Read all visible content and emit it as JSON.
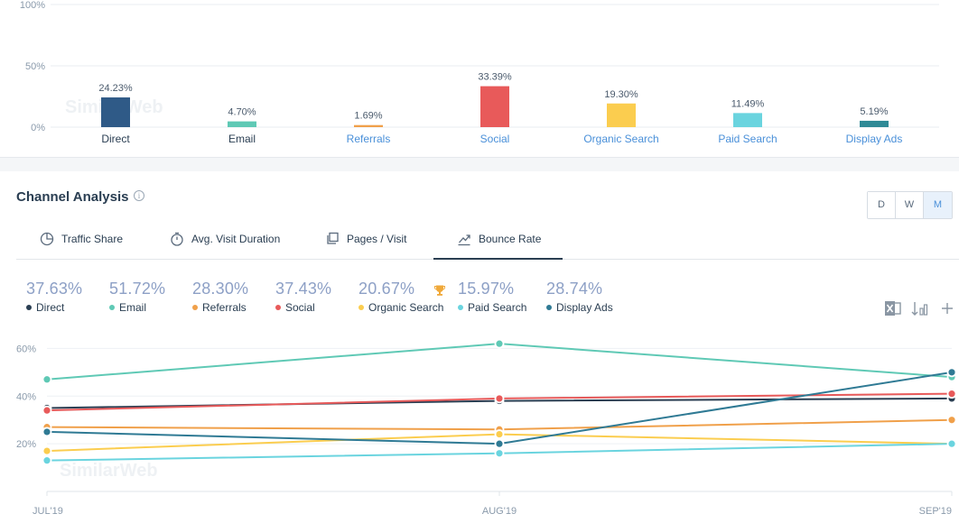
{
  "bar_chart": {
    "chart_data": {
      "type": "bar",
      "categories": [
        "Direct",
        "Email",
        "Referrals",
        "Social",
        "Organic Search",
        "Paid Search",
        "Display Ads"
      ],
      "values": [
        24.23,
        4.7,
        1.69,
        33.39,
        19.3,
        11.49,
        5.19
      ],
      "value_labels": [
        "24.23%",
        "4.70%",
        "1.69%",
        "33.39%",
        "19.30%",
        "11.49%",
        "5.19%"
      ],
      "colors": [
        "#2f5a87",
        "#5fc9b5",
        "#f0a04a",
        "#e85a5a",
        "#fbcd4f",
        "#6ad4df",
        "#2f8a96"
      ],
      "category_colors": [
        "#2a3e52",
        "#2a3e52",
        "#4a90d9",
        "#4a90d9",
        "#4a90d9",
        "#4a90d9",
        "#4a90d9"
      ],
      "yticks": [
        "100%",
        "50%",
        "0%"
      ],
      "ylim": [
        0,
        100
      ],
      "watermark": "SimilarWeb"
    }
  },
  "channel_analysis": {
    "title": "Channel Analysis",
    "info_icon": "info-icon",
    "granularity": [
      "D",
      "W",
      "M"
    ],
    "granularity_active": "M",
    "tabs": [
      {
        "label": "Traffic Share",
        "icon": "pie-chart-icon"
      },
      {
        "label": "Avg. Visit Duration",
        "icon": "stopwatch-icon"
      },
      {
        "label": "Pages / Visit",
        "icon": "pages-icon"
      },
      {
        "label": "Bounce Rate",
        "icon": "bounce-icon",
        "active": true
      }
    ],
    "legend": [
      {
        "value": "37.63%",
        "name": "Direct",
        "color": "#2a3e52"
      },
      {
        "value": "51.72%",
        "name": "Email",
        "color": "#5fc9b5"
      },
      {
        "value": "28.30%",
        "name": "Referrals",
        "color": "#f0a04a"
      },
      {
        "value": "37.43%",
        "name": "Social",
        "color": "#e85a5a"
      },
      {
        "value": "20.67%",
        "name": "Organic Search",
        "color": "#fbcd4f"
      },
      {
        "value": "15.97%",
        "name": "Paid Search",
        "color": "#6ad4df",
        "trophy": true
      },
      {
        "value": "28.74%",
        "name": "Display Ads",
        "color": "#2f7a94"
      }
    ],
    "toolbar_icons": [
      "excel-icon",
      "sort-icon",
      "add-icon"
    ]
  },
  "chart_data": {
    "type": "line",
    "x": [
      "JUL'19",
      "AUG'19",
      "SEP'19"
    ],
    "yticks": [
      "60%",
      "40%",
      "20%"
    ],
    "ylim": [
      0,
      70
    ],
    "watermark": "SimilarWeb",
    "series": [
      {
        "name": "Direct",
        "color": "#2a3e52",
        "values": [
          35,
          38,
          39
        ]
      },
      {
        "name": "Email",
        "color": "#5fc9b5",
        "values": [
          47,
          62,
          48
        ]
      },
      {
        "name": "Referrals",
        "color": "#f0a04a",
        "values": [
          27,
          26,
          30
        ]
      },
      {
        "name": "Social",
        "color": "#e85a5a",
        "values": [
          34,
          39,
          41
        ]
      },
      {
        "name": "Organic Search",
        "color": "#fbcd4f",
        "values": [
          17,
          24,
          20
        ]
      },
      {
        "name": "Paid Search",
        "color": "#6ad4df",
        "values": [
          13,
          16,
          20
        ]
      },
      {
        "name": "Display Ads",
        "color": "#2f7a94",
        "values": [
          25,
          20,
          50
        ]
      }
    ]
  }
}
